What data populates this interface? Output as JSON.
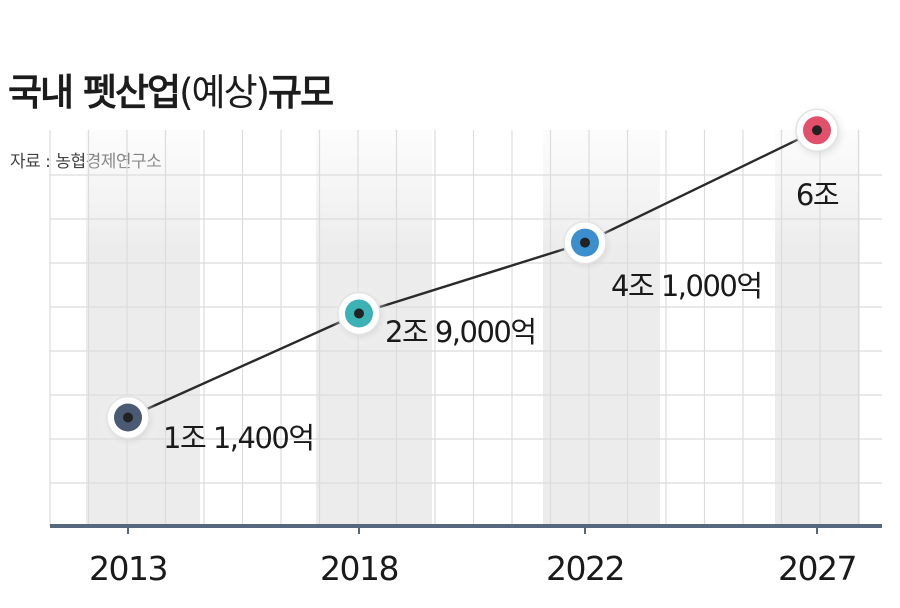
{
  "title_main": "국내 펫산업",
  "title_paren": "(예상)",
  "title_tail": "규모",
  "source": "자료 : 농협경제연구소",
  "chart_data": {
    "type": "line",
    "x": [
      "2013",
      "2018",
      "2022",
      "2027"
    ],
    "values": [
      1.14,
      2.9,
      4.1,
      6.0
    ],
    "unit": "조원",
    "data_labels": [
      "1조 1,400억",
      "2조 9,000억",
      "4조 1,000억",
      "6조"
    ],
    "marker_colors": [
      "#4a5a72",
      "#3cb1b6",
      "#3b8fcf",
      "#e2506a"
    ],
    "line_color": "#2a2a2a",
    "axis_color": "#55687d",
    "grid": true,
    "legend": "none"
  }
}
